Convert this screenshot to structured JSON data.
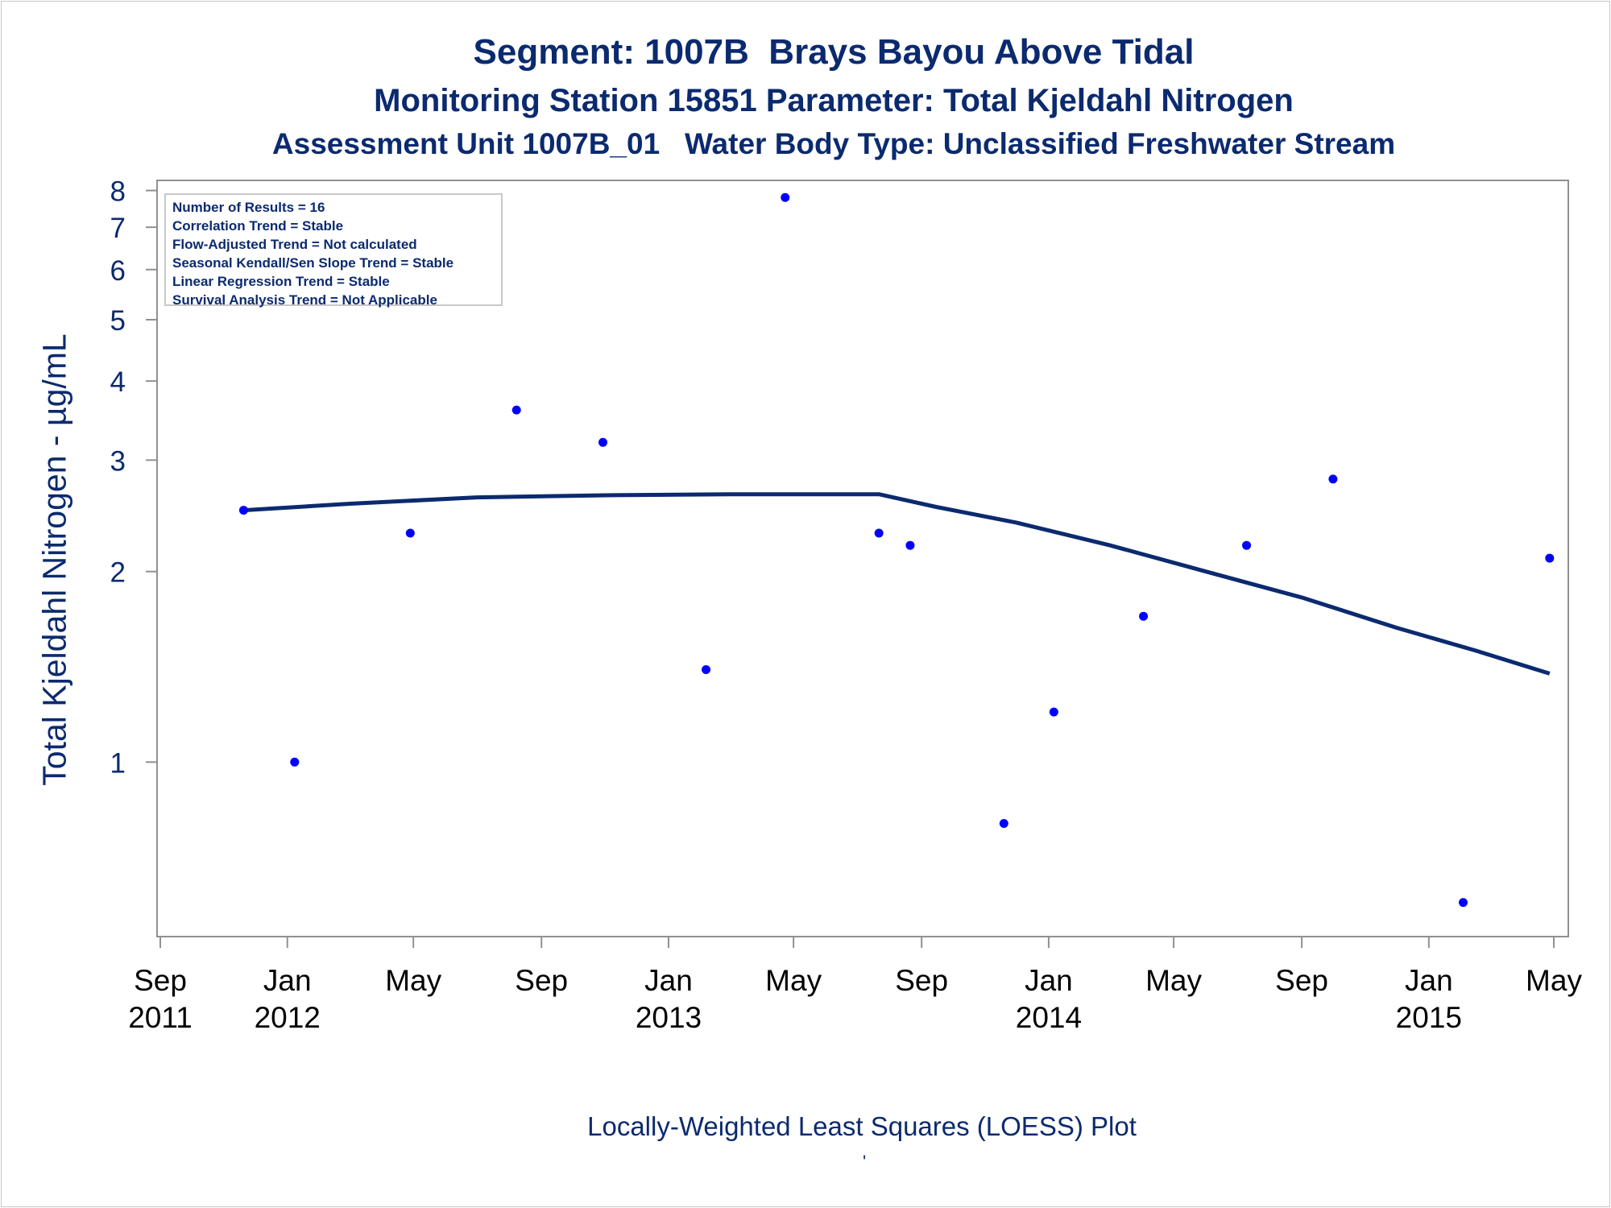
{
  "header": {
    "title": "Segment: 1007B  Brays Bayou Above Tidal",
    "subtitle": "Monitoring Station 15851 Parameter: Total Kjeldahl Nitrogen",
    "subtitle2": "Assessment Unit 1007B_01   Water Body Type: Unclassified Freshwater Stream"
  },
  "stats": {
    "line1": "Number of Results = 16",
    "line2": "Correlation Trend = Stable",
    "line3": "Flow-Adjusted Trend = Not calculated",
    "line4": "Seasonal Kendall/Sen Slope Trend = Stable",
    "line5": "Linear Regression Trend = Stable",
    "line6": "Survival Analysis Trend = Not Applicable"
  },
  "footer": {
    "label": "Locally-Weighted Least Squares (LOESS) Plot",
    "mark": "'"
  },
  "colors": {
    "text": "#0b2a6f",
    "points": "#0000ff",
    "line": "#0b2a6f",
    "axis": "#909090"
  },
  "chart_data": {
    "type": "scatter",
    "title": "Segment: 1007B  Brays Bayou Above Tidal",
    "ylabel": "Total Kjeldahl Nitrogen -  µg/mL",
    "xlabel": "",
    "y_scale": "log",
    "ylim": [
      0.53,
      8.3
    ],
    "xlim": [
      "2011-09-01",
      "2015-05-01"
    ],
    "grid": false,
    "x_ticks": [
      {
        "date": "2011-09-01",
        "month": "Sep",
        "year": "2011"
      },
      {
        "date": "2012-01-01",
        "month": "Jan",
        "year": "2012"
      },
      {
        "date": "2012-05-01",
        "month": "May",
        "year": ""
      },
      {
        "date": "2012-09-01",
        "month": "Sep",
        "year": ""
      },
      {
        "date": "2013-01-01",
        "month": "Jan",
        "year": "2013"
      },
      {
        "date": "2013-05-01",
        "month": "May",
        "year": ""
      },
      {
        "date": "2013-09-01",
        "month": "Sep",
        "year": ""
      },
      {
        "date": "2014-01-01",
        "month": "Jan",
        "year": "2014"
      },
      {
        "date": "2014-05-01",
        "month": "May",
        "year": ""
      },
      {
        "date": "2014-09-01",
        "month": "Sep",
        "year": ""
      },
      {
        "date": "2015-01-01",
        "month": "Jan",
        "year": "2015"
      },
      {
        "date": "2015-05-01",
        "month": "May",
        "year": ""
      }
    ],
    "y_ticks": [
      1,
      2,
      3,
      4,
      5,
      6,
      7,
      8
    ],
    "series": [
      {
        "type": "scatter",
        "x": [
          "2011-11-20",
          "2012-01-08",
          "2012-04-28",
          "2012-08-08",
          "2012-10-30",
          "2013-02-06",
          "2013-04-23",
          "2013-07-22",
          "2013-08-21",
          "2013-11-19",
          "2014-01-06",
          "2014-04-02",
          "2014-07-10",
          "2014-10-01",
          "2015-02-03",
          "2015-04-27"
        ],
        "y": [
          2.5,
          1.0,
          2.3,
          3.6,
          3.2,
          1.4,
          7.8,
          2.3,
          2.2,
          0.8,
          1.2,
          1.7,
          2.2,
          2.8,
          0.6,
          2.1
        ]
      },
      {
        "type": "line",
        "x": [
          "2011-11-20",
          "2012-03-01",
          "2012-07-01",
          "2012-11-01",
          "2013-03-01",
          "2013-07-22",
          "2013-09-15",
          "2013-12-01",
          "2014-03-01",
          "2014-06-01",
          "2014-09-01",
          "2014-12-01",
          "2015-02-15",
          "2015-04-27"
        ],
        "y": [
          2.5,
          2.56,
          2.62,
          2.64,
          2.65,
          2.65,
          2.53,
          2.39,
          2.2,
          2.0,
          1.82,
          1.63,
          1.5,
          1.38
        ]
      }
    ]
  }
}
